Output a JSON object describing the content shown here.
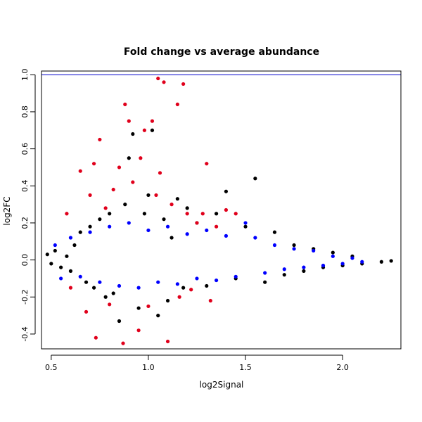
{
  "chart_data": {
    "type": "scatter",
    "title": "Fold change vs average abundance",
    "xlabel": "log2Signal",
    "ylabel": "log2FC",
    "xlim": [
      0.45,
      2.3
    ],
    "ylim": [
      -0.48,
      1.02
    ],
    "x_ticks": [
      0.5,
      1.0,
      1.5,
      2.0
    ],
    "x_tick_labels": [
      "0.5",
      "1.0",
      "1.5",
      "2.0"
    ],
    "y_ticks": [
      -0.4,
      -0.2,
      0.0,
      0.2,
      0.4,
      0.6,
      0.8,
      1.0
    ],
    "y_tick_labels": [
      "-0.4",
      "-0.2",
      "0.0",
      "0.2",
      "0.4",
      "0.6",
      "0.8",
      "1.0"
    ],
    "reference_line": {
      "y": 1.0,
      "color": "#0000cc"
    },
    "grid": false,
    "legend": "none",
    "colors": {
      "black": "#000000",
      "blue": "#0000ff",
      "red": "#e0001b"
    },
    "series": [
      {
        "color": "#000000",
        "description": "dense central band of points",
        "points": [
          [
            0.48,
            0.03
          ],
          [
            0.5,
            -0.02
          ],
          [
            0.52,
            0.05
          ],
          [
            0.55,
            -0.04
          ],
          [
            0.58,
            0.02
          ],
          [
            0.6,
            -0.06
          ],
          [
            0.62,
            0.08
          ],
          [
            0.65,
            0.15
          ],
          [
            0.68,
            -0.12
          ],
          [
            0.7,
            0.18
          ],
          [
            0.72,
            -0.15
          ],
          [
            0.75,
            0.22
          ],
          [
            0.78,
            -0.2
          ],
          [
            0.8,
            0.25
          ],
          [
            0.82,
            -0.18
          ],
          [
            0.85,
            -0.33
          ],
          [
            0.88,
            0.3
          ],
          [
            0.9,
            0.55
          ],
          [
            0.92,
            0.68
          ],
          [
            0.95,
            -0.26
          ],
          [
            0.98,
            0.25
          ],
          [
            1.0,
            0.35
          ],
          [
            1.02,
            0.7
          ],
          [
            1.05,
            -0.3
          ],
          [
            1.08,
            0.22
          ],
          [
            1.1,
            -0.22
          ],
          [
            1.12,
            0.12
          ],
          [
            1.15,
            0.33
          ],
          [
            1.18,
            -0.15
          ],
          [
            1.2,
            0.28
          ],
          [
            1.25,
            0.2
          ],
          [
            1.3,
            -0.14
          ],
          [
            1.35,
            0.25
          ],
          [
            1.4,
            0.37
          ],
          [
            1.45,
            -0.1
          ],
          [
            1.5,
            0.18
          ],
          [
            1.55,
            0.44
          ],
          [
            1.6,
            -0.12
          ],
          [
            1.65,
            0.15
          ],
          [
            1.7,
            -0.08
          ],
          [
            1.75,
            0.08
          ],
          [
            1.8,
            -0.06
          ],
          [
            1.85,
            0.06
          ],
          [
            1.9,
            -0.04
          ],
          [
            1.95,
            0.04
          ],
          [
            2.0,
            -0.03
          ],
          [
            2.05,
            0.02
          ],
          [
            2.1,
            -0.02
          ],
          [
            2.2,
            -0.01
          ],
          [
            2.25,
            -0.005
          ]
        ]
      },
      {
        "color": "#0000ff",
        "description": "blue points within the band",
        "points": [
          [
            0.52,
            0.08
          ],
          [
            0.55,
            -0.1
          ],
          [
            0.6,
            0.12
          ],
          [
            0.65,
            -0.09
          ],
          [
            0.7,
            0.15
          ],
          [
            0.75,
            -0.12
          ],
          [
            0.8,
            0.18
          ],
          [
            0.85,
            -0.14
          ],
          [
            0.9,
            0.2
          ],
          [
            0.95,
            -0.15
          ],
          [
            1.0,
            0.16
          ],
          [
            1.05,
            -0.12
          ],
          [
            1.1,
            0.18
          ],
          [
            1.15,
            -0.13
          ],
          [
            1.2,
            0.14
          ],
          [
            1.25,
            -0.1
          ],
          [
            1.3,
            0.16
          ],
          [
            1.35,
            -0.11
          ],
          [
            1.4,
            0.13
          ],
          [
            1.45,
            -0.09
          ],
          [
            1.5,
            0.2
          ],
          [
            1.55,
            0.12
          ],
          [
            1.6,
            -0.07
          ],
          [
            1.65,
            0.08
          ],
          [
            1.7,
            -0.05
          ],
          [
            1.75,
            0.06
          ],
          [
            1.8,
            -0.04
          ],
          [
            1.85,
            0.05
          ],
          [
            1.9,
            -0.03
          ],
          [
            1.95,
            0.02
          ],
          [
            2.0,
            -0.02
          ],
          [
            2.05,
            0.01
          ],
          [
            2.1,
            -0.01
          ]
        ]
      },
      {
        "color": "#e0001b",
        "description": "red outlier points",
        "points": [
          [
            0.58,
            0.25
          ],
          [
            0.6,
            -0.15
          ],
          [
            0.65,
            0.48
          ],
          [
            0.68,
            -0.28
          ],
          [
            0.7,
            0.35
          ],
          [
            0.72,
            0.52
          ],
          [
            0.73,
            -0.42
          ],
          [
            0.75,
            0.65
          ],
          [
            0.78,
            0.28
          ],
          [
            0.8,
            -0.24
          ],
          [
            0.82,
            0.38
          ],
          [
            0.85,
            0.5
          ],
          [
            0.87,
            -0.45
          ],
          [
            0.88,
            0.84
          ],
          [
            0.9,
            0.75
          ],
          [
            0.92,
            0.42
          ],
          [
            0.95,
            -0.38
          ],
          [
            0.96,
            0.55
          ],
          [
            0.98,
            0.7
          ],
          [
            1.0,
            -0.25
          ],
          [
            1.02,
            0.75
          ],
          [
            1.04,
            0.35
          ],
          [
            1.05,
            0.98
          ],
          [
            1.06,
            0.47
          ],
          [
            1.08,
            0.96
          ],
          [
            1.1,
            -0.44
          ],
          [
            1.12,
            0.3
          ],
          [
            1.15,
            0.84
          ],
          [
            1.16,
            -0.2
          ],
          [
            1.18,
            0.95
          ],
          [
            1.2,
            0.25
          ],
          [
            1.22,
            -0.16
          ],
          [
            1.25,
            0.2
          ],
          [
            1.28,
            0.25
          ],
          [
            1.3,
            0.52
          ],
          [
            1.32,
            -0.22
          ],
          [
            1.35,
            0.18
          ],
          [
            1.4,
            0.27
          ],
          [
            1.45,
            0.25
          ]
        ]
      }
    ]
  }
}
